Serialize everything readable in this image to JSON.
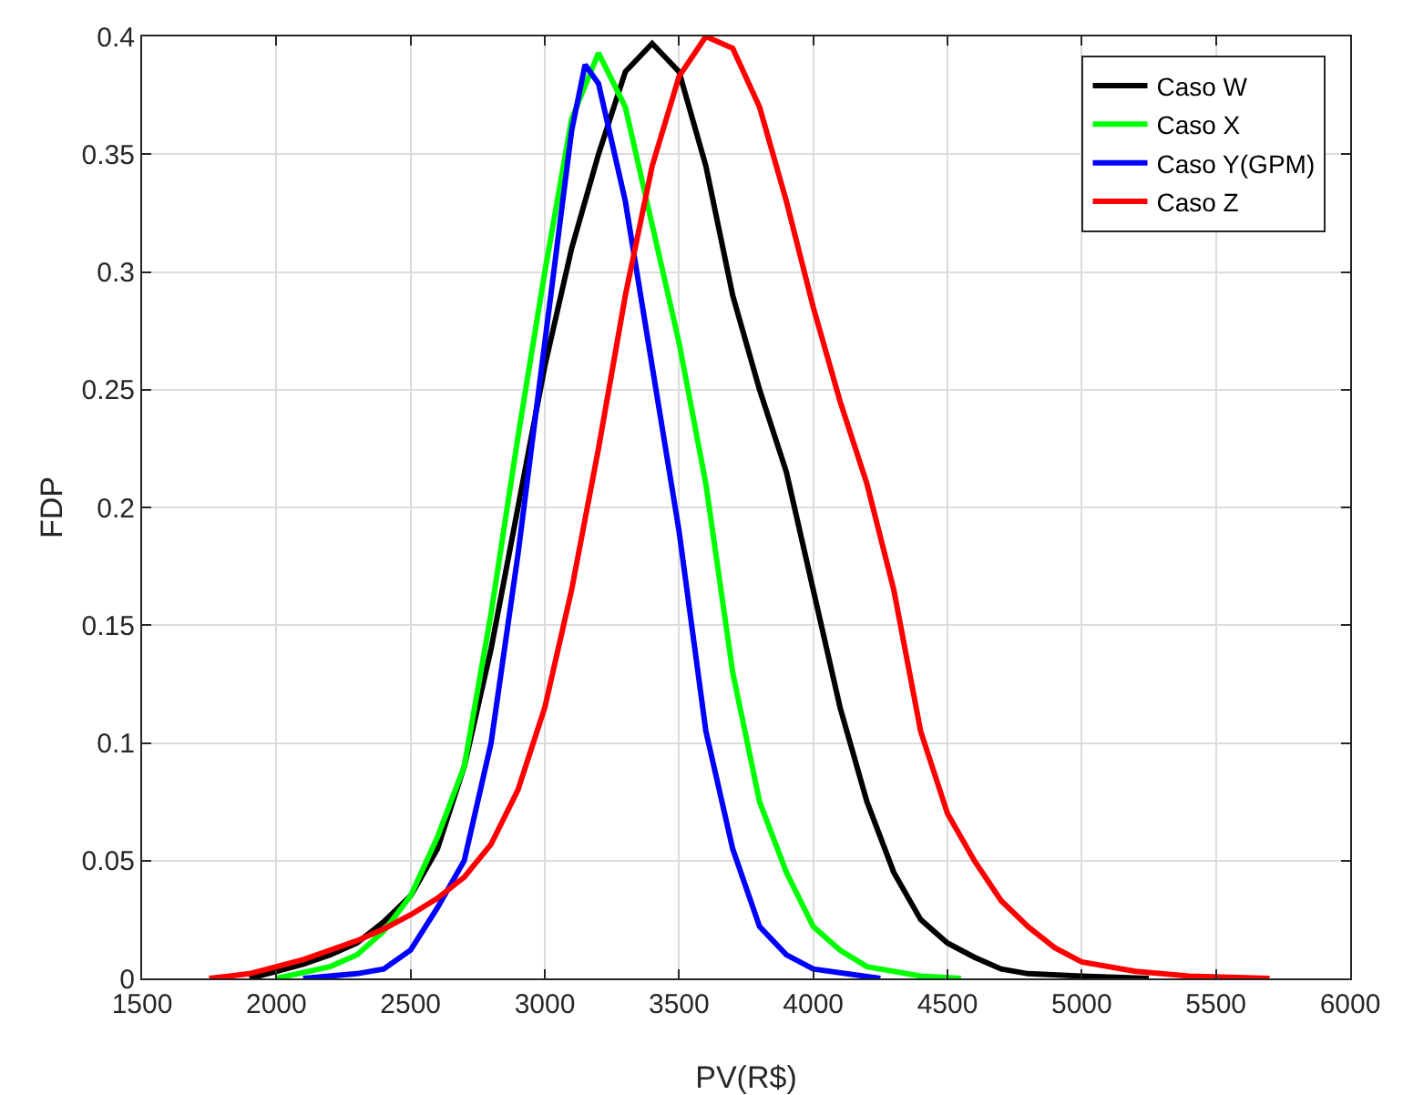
{
  "chart_data": {
    "type": "line",
    "xlabel": "PV(R$)",
    "ylabel": "FDP",
    "xlim": [
      1500,
      6000
    ],
    "xticks": [
      1500,
      2000,
      2500,
      3000,
      3500,
      4000,
      4500,
      5000,
      5500,
      6000
    ],
    "ylim": [
      0,
      0.4
    ],
    "yticks": [
      0,
      0.05,
      0.1,
      0.15,
      0.2,
      0.25,
      0.3,
      0.35,
      0.4
    ],
    "grid": true,
    "legend": "top right",
    "marker": "none",
    "line_style": "solid",
    "series": [
      {
        "name": "Caso W",
        "color": "#000000",
        "x": [
          1900,
          2000,
          2100,
          2200,
          2300,
          2400,
          2500,
          2600,
          2700,
          2800,
          2900,
          3000,
          3100,
          3200,
          3300,
          3400,
          3500,
          3600,
          3700,
          3800,
          3900,
          4000,
          4100,
          4200,
          4300,
          4400,
          4500,
          4600,
          4700,
          4800,
          5000,
          5250
        ],
        "values": [
          0,
          0.003,
          0.006,
          0.01,
          0.015,
          0.024,
          0.035,
          0.055,
          0.09,
          0.14,
          0.2,
          0.26,
          0.31,
          0.35,
          0.385,
          0.397,
          0.385,
          0.345,
          0.29,
          0.25,
          0.215,
          0.165,
          0.115,
          0.075,
          0.045,
          0.025,
          0.015,
          0.009,
          0.004,
          0.002,
          0.001,
          0
        ]
      },
      {
        "name": "Caso X",
        "color": "#00ff00",
        "x": [
          2000,
          2200,
          2300,
          2400,
          2500,
          2600,
          2700,
          2800,
          2900,
          3000,
          3100,
          3200,
          3300,
          3400,
          3500,
          3600,
          3700,
          3800,
          3900,
          4000,
          4100,
          4200,
          4400,
          4550
        ],
        "values": [
          0,
          0.005,
          0.01,
          0.02,
          0.035,
          0.06,
          0.09,
          0.155,
          0.23,
          0.3,
          0.365,
          0.393,
          0.37,
          0.32,
          0.27,
          0.21,
          0.13,
          0.075,
          0.045,
          0.022,
          0.012,
          0.005,
          0.001,
          0
        ]
      },
      {
        "name": "Caso Y(GPM)",
        "color": "#0000ff",
        "x": [
          2100,
          2300,
          2400,
          2500,
          2600,
          2700,
          2800,
          2900,
          3000,
          3100,
          3150,
          3200,
          3300,
          3400,
          3500,
          3600,
          3700,
          3800,
          3900,
          4000,
          4250
        ],
        "values": [
          0,
          0.002,
          0.004,
          0.012,
          0.03,
          0.05,
          0.1,
          0.18,
          0.27,
          0.36,
          0.388,
          0.38,
          0.33,
          0.26,
          0.19,
          0.105,
          0.055,
          0.022,
          0.01,
          0.004,
          0
        ]
      },
      {
        "name": "Caso Z",
        "color": "#ff0000",
        "x": [
          1750,
          1900,
          2000,
          2100,
          2200,
          2300,
          2400,
          2500,
          2600,
          2700,
          2800,
          2900,
          3000,
          3100,
          3200,
          3300,
          3400,
          3500,
          3600,
          3700,
          3800,
          3900,
          4000,
          4100,
          4200,
          4300,
          4400,
          4500,
          4600,
          4700,
          4800,
          4900,
          5000,
          5200,
          5400,
          5700
        ],
        "values": [
          0,
          0.002,
          0.005,
          0.008,
          0.012,
          0.016,
          0.021,
          0.027,
          0.034,
          0.043,
          0.057,
          0.08,
          0.115,
          0.165,
          0.225,
          0.29,
          0.345,
          0.383,
          0.4,
          0.395,
          0.37,
          0.33,
          0.285,
          0.245,
          0.21,
          0.165,
          0.105,
          0.07,
          0.05,
          0.033,
          0.022,
          0.013,
          0.007,
          0.003,
          0.001,
          0
        ]
      }
    ]
  }
}
